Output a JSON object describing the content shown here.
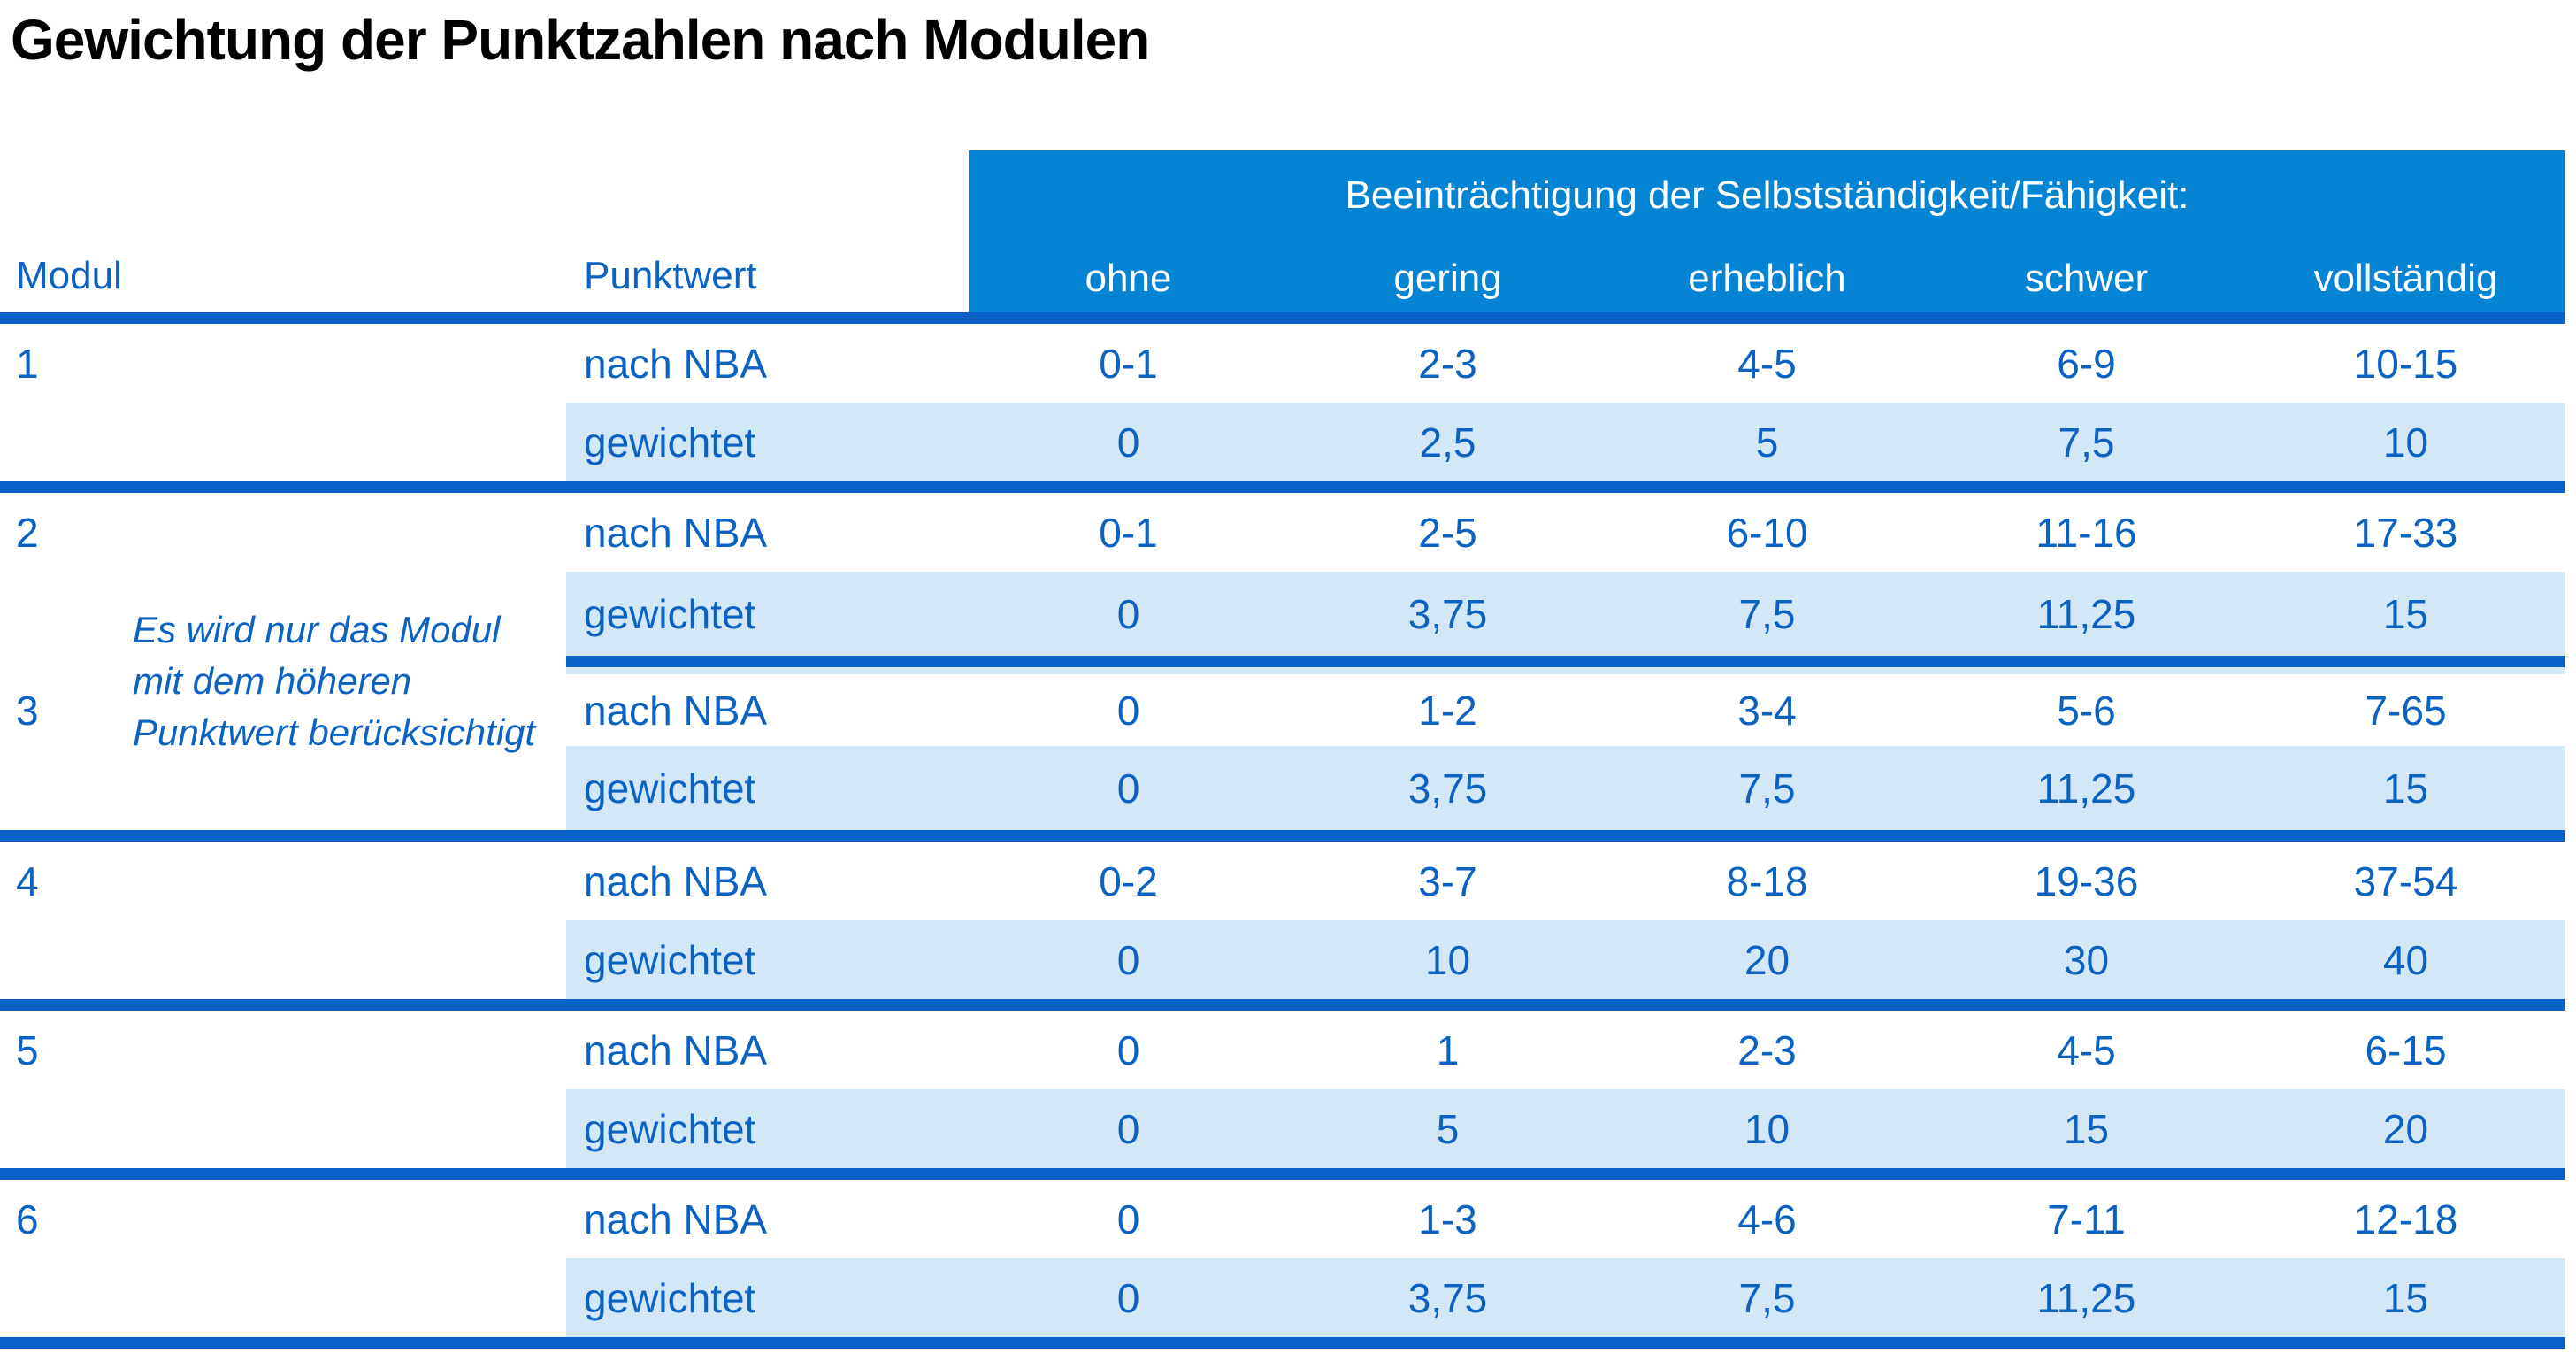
{
  "title": "Gewichtung der Punktzahlen nach Modulen",
  "colors": {
    "header-bg": "#0684D4",
    "line-blue": "#0A62C8",
    "text-blue": "#0B62C1",
    "row-light": "#D3E8F6",
    "title-black": "#000000"
  },
  "table": {
    "header": {
      "modul": "Modul",
      "punktwert": "Punktwert",
      "impairment_title": "Beeinträchtigung der Selbstständigkeit/Fähigkeit:",
      "levels": [
        "ohne",
        "gering",
        "erheblich",
        "schwer",
        "vollständig"
      ]
    },
    "note": {
      "lines": [
        "Es wird nur das Modul",
        "mit dem höheren",
        "Punktwert berücksichtigt"
      ]
    },
    "row_labels": {
      "nba": "nach NBA",
      "weighted": "gewichtet"
    },
    "modules": [
      {
        "module": "1",
        "rows": [
          {
            "label": "nach NBA",
            "values": [
              "0-1",
              "2-3",
              "4-5",
              "6-9",
              "10-15"
            ]
          },
          {
            "label": "gewichtet",
            "values": [
              "0",
              "2,5",
              "5",
              "7,5",
              "10"
            ]
          }
        ]
      },
      {
        "module": "2",
        "rows": [
          {
            "label": "nach NBA",
            "values": [
              "0-1",
              "2-5",
              "6-10",
              "11-16",
              "17-33"
            ]
          },
          {
            "label": "gewichtet",
            "values": [
              "0",
              "3,75",
              "7,5",
              "11,25",
              "15"
            ]
          }
        ]
      },
      {
        "module": "3",
        "rows": [
          {
            "label": "nach NBA",
            "values": [
              "0",
              "1-2",
              "3-4",
              "5-6",
              "7-65"
            ]
          },
          {
            "label": "gewichtet",
            "values": [
              "0",
              "3,75",
              "7,5",
              "11,25",
              "15"
            ]
          }
        ]
      },
      {
        "module": "4",
        "rows": [
          {
            "label": "nach NBA",
            "values": [
              "0-2",
              "3-7",
              "8-18",
              "19-36",
              "37-54"
            ]
          },
          {
            "label": "gewichtet",
            "values": [
              "0",
              "10",
              "20",
              "30",
              "40"
            ]
          }
        ]
      },
      {
        "module": "5",
        "rows": [
          {
            "label": "nach NBA",
            "values": [
              "0",
              "1",
              "2-3",
              "4-5",
              "6-15"
            ]
          },
          {
            "label": "gewichtet",
            "values": [
              "0",
              "5",
              "10",
              "15",
              "20"
            ]
          }
        ]
      },
      {
        "module": "6",
        "rows": [
          {
            "label": "nach NBA",
            "values": [
              "0",
              "1-3",
              "4-6",
              "7-11",
              "12-18"
            ]
          },
          {
            "label": "gewichtet",
            "values": [
              "0",
              "3,75",
              "7,5",
              "11,25",
              "15"
            ]
          }
        ]
      }
    ]
  }
}
